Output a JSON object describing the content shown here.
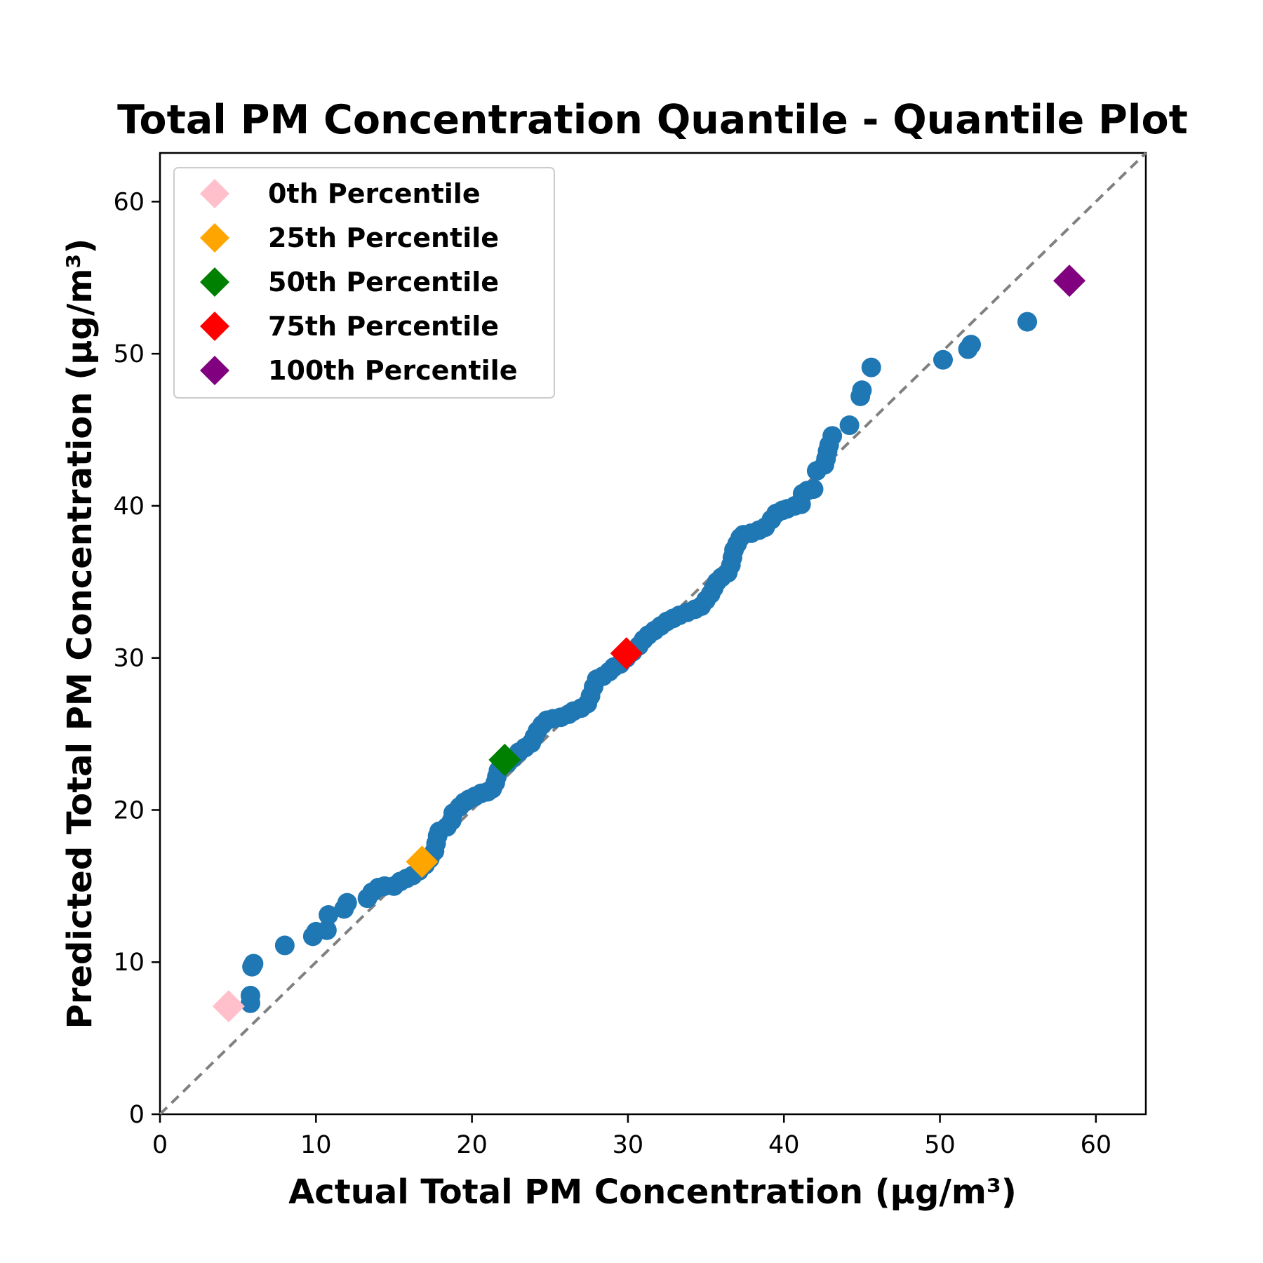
{
  "chart_data": {
    "type": "scatter",
    "title": "Total PM Concentration Quantile - Quantile Plot",
    "xlabel": "Actual Total PM Concentration (µg/m³)",
    "ylabel": "Predicted Total PM Concentration (µg/m³)",
    "xlim": [
      0,
      63.2
    ],
    "ylim": [
      0,
      63.2
    ],
    "xticks": [
      0,
      10,
      20,
      30,
      40,
      50,
      60
    ],
    "yticks": [
      0,
      10,
      20,
      30,
      40,
      50,
      60
    ],
    "grid": false,
    "legend_position": "top-left",
    "reference_line": {
      "from": [
        0,
        0
      ],
      "to": [
        63.2,
        63.2
      ],
      "color": "#808080",
      "style": "dashed"
    },
    "series": [
      {
        "type": "scatter",
        "color": "#1f77b4",
        "points": [
          [
            5.8,
            7.3
          ],
          [
            5.8,
            7.8
          ],
          [
            5.9,
            9.7
          ],
          [
            6.0,
            9.9
          ],
          [
            8.0,
            11.1
          ],
          [
            9.8,
            11.7
          ],
          [
            10.0,
            12.0
          ],
          [
            10.7,
            12.1
          ],
          [
            10.8,
            13.1
          ],
          [
            11.8,
            13.5
          ],
          [
            12.0,
            13.9
          ],
          [
            13.3,
            14.2
          ],
          [
            13.6,
            14.6
          ],
          [
            14.0,
            14.9
          ],
          [
            14.4,
            15.0
          ],
          [
            15.0,
            15.0
          ],
          [
            15.4,
            15.3
          ],
          [
            15.8,
            15.5
          ],
          [
            16.2,
            15.7
          ],
          [
            16.6,
            16.0
          ],
          [
            17.0,
            16.4
          ],
          [
            17.3,
            16.8
          ],
          [
            17.6,
            17.3
          ],
          [
            17.7,
            17.8
          ],
          [
            17.8,
            18.3
          ],
          [
            17.9,
            18.6
          ],
          [
            18.4,
            18.9
          ],
          [
            18.7,
            19.3
          ],
          [
            18.8,
            19.8
          ],
          [
            19.2,
            20.2
          ],
          [
            19.5,
            20.5
          ],
          [
            19.8,
            20.7
          ],
          [
            20.2,
            20.9
          ],
          [
            20.6,
            21.1
          ],
          [
            21.0,
            21.2
          ],
          [
            21.3,
            21.4
          ],
          [
            21.5,
            21.8
          ],
          [
            21.6,
            22.2
          ],
          [
            21.7,
            22.6
          ],
          [
            21.9,
            22.9
          ],
          [
            22.3,
            23.1
          ],
          [
            22.6,
            23.4
          ],
          [
            23.0,
            23.8
          ],
          [
            23.4,
            24.1
          ],
          [
            23.8,
            24.4
          ],
          [
            24.0,
            24.8
          ],
          [
            24.2,
            25.2
          ],
          [
            24.5,
            25.6
          ],
          [
            24.8,
            25.9
          ],
          [
            25.2,
            26.0
          ],
          [
            25.7,
            26.1
          ],
          [
            26.2,
            26.3
          ],
          [
            26.5,
            26.5
          ],
          [
            27.0,
            26.7
          ],
          [
            27.4,
            27.0
          ],
          [
            27.6,
            27.5
          ],
          [
            27.8,
            28.1
          ],
          [
            28.0,
            28.6
          ],
          [
            28.4,
            28.8
          ],
          [
            28.8,
            29.1
          ],
          [
            29.1,
            29.4
          ],
          [
            29.5,
            29.6
          ],
          [
            29.9,
            30.0
          ],
          [
            30.3,
            30.4
          ],
          [
            30.7,
            30.8
          ],
          [
            31.0,
            31.2
          ],
          [
            31.3,
            31.5
          ],
          [
            31.7,
            31.8
          ],
          [
            32.1,
            32.1
          ],
          [
            32.5,
            32.4
          ],
          [
            32.9,
            32.6
          ],
          [
            33.3,
            32.8
          ],
          [
            33.8,
            33.0
          ],
          [
            34.3,
            33.2
          ],
          [
            34.7,
            33.4
          ],
          [
            35.0,
            33.8
          ],
          [
            35.3,
            34.2
          ],
          [
            35.5,
            34.6
          ],
          [
            35.7,
            35.0
          ],
          [
            36.0,
            35.3
          ],
          [
            36.4,
            35.6
          ],
          [
            36.6,
            36.1
          ],
          [
            36.7,
            36.6
          ],
          [
            36.8,
            37.1
          ],
          [
            37.0,
            37.5
          ],
          [
            37.2,
            37.9
          ],
          [
            37.4,
            38.1
          ],
          [
            37.9,
            38.2
          ],
          [
            38.4,
            38.4
          ],
          [
            38.8,
            38.6
          ],
          [
            39.2,
            39.1
          ],
          [
            39.5,
            39.5
          ],
          [
            39.9,
            39.7
          ],
          [
            40.2,
            39.8
          ],
          [
            40.7,
            40.0
          ],
          [
            41.1,
            40.1
          ],
          [
            41.2,
            40.8
          ],
          [
            41.5,
            41.0
          ],
          [
            41.9,
            41.1
          ],
          [
            42.1,
            42.3
          ],
          [
            42.6,
            42.7
          ],
          [
            42.7,
            43.1
          ],
          [
            42.8,
            43.6
          ],
          [
            42.9,
            44.0
          ],
          [
            43.1,
            44.6
          ],
          [
            44.2,
            45.3
          ],
          [
            44.9,
            47.2
          ],
          [
            45.0,
            47.6
          ],
          [
            45.6,
            49.1
          ],
          [
            50.2,
            49.6
          ],
          [
            51.8,
            50.3
          ],
          [
            52.0,
            50.6
          ],
          [
            55.6,
            52.1
          ]
        ]
      }
    ],
    "percentiles": [
      {
        "label": "0th Percentile",
        "x": 4.4,
        "y": 7.1,
        "color": "#ffc0cb"
      },
      {
        "label": "25th Percentile",
        "x": 16.8,
        "y": 16.6,
        "color": "#ffa500"
      },
      {
        "label": "50th Percentile",
        "x": 22.1,
        "y": 23.3,
        "color": "#008000"
      },
      {
        "label": "75th Percentile",
        "x": 29.9,
        "y": 30.3,
        "color": "#ff0000"
      },
      {
        "label": "100th Percentile",
        "x": 58.3,
        "y": 54.8,
        "color": "#800080"
      }
    ]
  }
}
